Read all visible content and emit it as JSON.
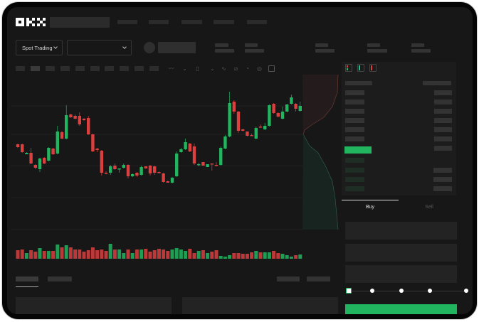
{
  "brand": {
    "logo": "OKX"
  },
  "market": {
    "mode_label": "Spot Trading"
  },
  "trade": {
    "buy_tab": "Buy",
    "sell_tab": "Sell",
    "active_tab": "Buy",
    "leverage_slider_value": 0
  },
  "colors": {
    "up": "#22b560",
    "down": "#d9403f",
    "background": "#171717",
    "panel": "#1c1c1c"
  },
  "icons": [
    "chevron-down-icon",
    "indicator-icon",
    "line-tool-icon",
    "ruler-icon",
    "camera-icon",
    "settings-icon",
    "fullscreen-icon",
    "orderbook-both-icon",
    "orderbook-buy-icon",
    "orderbook-sell-icon"
  ],
  "chart": {
    "candles": [
      [
        97,
        93,
        98,
        92
      ],
      [
        97,
        86,
        98,
        85
      ],
      [
        83,
        85,
        86,
        83
      ],
      [
        85,
        70,
        92,
        69
      ],
      [
        68,
        64,
        69,
        62
      ],
      [
        62,
        77,
        78,
        58
      ],
      [
        78,
        70,
        79,
        69
      ],
      [
        74,
        92,
        93,
        73
      ],
      [
        91,
        83,
        92,
        82
      ],
      [
        84,
        115,
        123,
        83
      ],
      [
        114,
        105,
        116,
        104
      ],
      [
        105,
        138,
        152,
        104
      ],
      [
        139,
        135,
        140,
        134
      ],
      [
        137,
        133,
        139,
        132
      ],
      [
        137,
        125,
        142,
        123
      ],
      [
        133,
        131,
        134,
        130
      ],
      [
        134,
        111,
        137,
        110
      ],
      [
        111,
        87,
        112,
        86
      ],
      [
        91,
        89,
        92,
        86
      ],
      [
        88,
        57,
        89,
        53
      ],
      [
        57,
        56,
        59,
        55
      ],
      [
        57,
        66,
        68,
        54
      ],
      [
        67,
        62,
        70,
        61
      ],
      [
        62,
        63,
        63,
        57
      ],
      [
        64,
        68,
        70,
        63
      ],
      [
        68,
        52,
        69,
        49
      ],
      [
        52,
        55,
        56,
        51
      ],
      [
        57,
        53,
        58,
        51
      ],
      [
        54,
        65,
        67,
        53
      ],
      [
        66,
        63,
        66,
        63
      ],
      [
        67,
        56,
        68,
        53
      ],
      [
        66,
        57,
        67,
        54
      ],
      [
        58,
        57,
        59,
        56
      ],
      [
        56,
        44,
        57,
        43
      ],
      [
        45,
        43,
        46,
        43
      ],
      [
        43,
        50,
        51,
        42
      ],
      [
        52,
        84,
        87,
        51
      ],
      [
        86,
        90,
        92,
        85
      ],
      [
        90,
        100,
        105,
        89
      ],
      [
        98,
        87,
        99,
        86
      ],
      [
        94,
        70,
        98,
        68
      ],
      [
        68,
        69,
        71,
        66
      ],
      [
        72,
        67,
        72,
        67
      ],
      [
        65,
        69,
        69,
        65
      ],
      [
        70,
        69,
        70,
        60
      ],
      [
        68,
        67,
        72,
        66
      ],
      [
        68,
        92,
        94,
        67
      ],
      [
        91,
        108,
        110,
        90
      ],
      [
        108,
        155,
        171,
        107
      ],
      [
        157,
        143,
        159,
        140
      ],
      [
        143,
        116,
        144,
        113
      ],
      [
        118,
        116,
        119,
        115
      ],
      [
        115,
        109,
        115,
        108
      ],
      [
        110,
        109,
        112,
        109
      ],
      [
        105,
        120,
        122,
        104
      ],
      [
        122,
        121,
        125,
        120
      ],
      [
        118,
        123,
        127,
        117
      ],
      [
        123,
        152,
        153,
        122
      ],
      [
        154,
        141,
        155,
        140
      ],
      [
        141,
        136,
        142,
        135
      ],
      [
        133,
        143,
        150,
        132
      ],
      [
        143,
        153,
        154,
        142
      ],
      [
        154,
        163,
        167,
        153
      ],
      [
        154,
        147,
        155,
        143
      ],
      [
        144,
        151,
        157,
        143
      ]
    ],
    "volumes": [
      12,
      13,
      8,
      12,
      10,
      15,
      11,
      11,
      11,
      20,
      16,
      19,
      16,
      13,
      13,
      10,
      12,
      16,
      12,
      13,
      11,
      21,
      13,
      13,
      8,
      13,
      8,
      13,
      13,
      14,
      10,
      12,
      14,
      13,
      11,
      13,
      15,
      13,
      11,
      14,
      8,
      11,
      12,
      8,
      10,
      12,
      4,
      3,
      5,
      8,
      8,
      7,
      7,
      9,
      11,
      9,
      9,
      9,
      11,
      8,
      7,
      5,
      3,
      5,
      6
    ]
  }
}
